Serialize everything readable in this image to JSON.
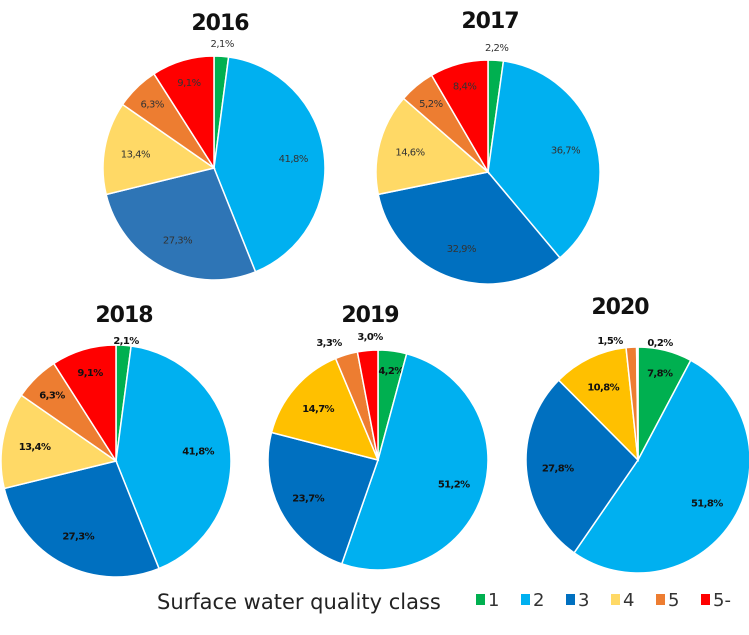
{
  "chart_data": {
    "type": "pie",
    "categories": [
      "1",
      "2",
      "3",
      "4",
      "5",
      "5-"
    ],
    "legend_title": "Surface water quality class",
    "legend_placement": "bottom",
    "colors": {
      "1": "#00B050",
      "2": "#00B0F0",
      "3": "#0070C0",
      "4": "#FFD966",
      "5": "#ED7D31",
      "5-": "#FF0000"
    },
    "pies": [
      {
        "title": "2016",
        "values": [
          2.1,
          41.8,
          27.3,
          13.4,
          6.3,
          9.1
        ],
        "labels": [
          "2,1%",
          "41,8%",
          "27,3%",
          "13,4%",
          "6,3%",
          "9,1%"
        ],
        "colors": [
          "#00B050",
          "#00B0F0",
          "#2E75B6",
          "#FFD966",
          "#ED7D31",
          "#FF0000"
        ]
      },
      {
        "title": "2017",
        "values": [
          2.2,
          36.7,
          32.9,
          14.6,
          5.2,
          8.4
        ],
        "labels": [
          "2,2%",
          "36,7%",
          "32,9%",
          "14,6%",
          "5,2%",
          "8,4%"
        ],
        "colors": [
          "#00B050",
          "#00B0F0",
          "#0070C0",
          "#FFD966",
          "#ED7D31",
          "#FF0000"
        ]
      },
      {
        "title": "2018",
        "values": [
          2.1,
          41.8,
          27.3,
          13.4,
          6.3,
          9.1
        ],
        "labels": [
          "2,1%",
          "41,8%",
          "27,3%",
          "13,4%",
          "6,3%",
          "9,1%"
        ],
        "colors": [
          "#00B050",
          "#00B0F0",
          "#0070C0",
          "#FFD966",
          "#ED7D31",
          "#FF0000"
        ]
      },
      {
        "title": "2019",
        "values": [
          4.2,
          51.2,
          23.7,
          14.7,
          3.3,
          3.0
        ],
        "labels": [
          "4,2%",
          "51,2%",
          "23,7%",
          "14,7%",
          "3,3%",
          "3,0%"
        ],
        "colors": [
          "#00B050",
          "#00B0F0",
          "#0070C0",
          "#FFC000",
          "#ED7D31",
          "#FF0000"
        ]
      },
      {
        "title": "2020",
        "values": [
          7.8,
          51.8,
          27.8,
          10.8,
          1.5,
          0.2
        ],
        "labels": [
          "7,8%",
          "51,8%",
          "27,8%",
          "10,8%",
          "1,5%",
          "0,2%"
        ],
        "colors": [
          "#00B050",
          "#00B0F0",
          "#0070C0",
          "#FFC000",
          "#ED7D31",
          "#FF0000"
        ]
      }
    ]
  }
}
